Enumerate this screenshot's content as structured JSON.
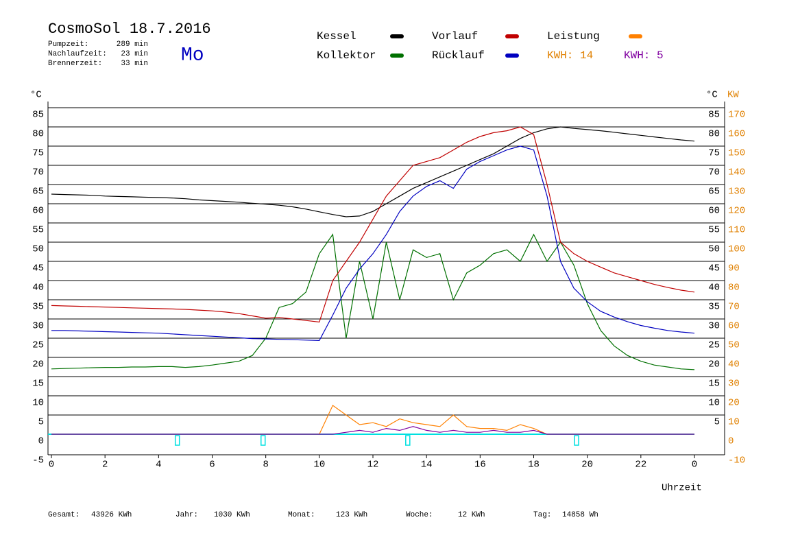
{
  "header": {
    "title": "CosmoSol 18.7.2016",
    "stats": [
      {
        "label": "Pumpzeit:",
        "value": "289 min"
      },
      {
        "label": "Nachlaufzeit:",
        "value": "23 min"
      },
      {
        "label": "Brennerzeit:",
        "value": "33 min"
      }
    ],
    "day": "Mo"
  },
  "footer": [
    {
      "label": "Gesamt:",
      "value": "43926 KWh"
    },
    {
      "label": "Jahr:",
      "value": "1030 KWh"
    },
    {
      "label": "Monat:",
      "value": "123 KWh"
    },
    {
      "label": "Woche:",
      "value": "12 KWh"
    },
    {
      "label": "Tag:",
      "value": "14858 Wh"
    }
  ],
  "chart_data": {
    "type": "line",
    "y_label": "°C",
    "y2_label": "°C",
    "y2_unit_label": "KW",
    "x_label": "Uhrzeit",
    "xlim": [
      0,
      24
    ],
    "xticks": [
      0,
      2,
      4,
      6,
      8,
      10,
      12,
      14,
      16,
      18,
      20,
      22,
      {
        "value": 24,
        "label": "0"
      }
    ],
    "ylim": [
      -5,
      85
    ],
    "yticks": [
      85,
      80,
      75,
      70,
      65,
      60,
      55,
      50,
      45,
      40,
      35,
      30,
      25,
      20,
      15,
      10,
      5,
      0,
      -5
    ],
    "y_right_ticks": [
      85,
      80,
      75,
      70,
      65,
      60,
      55,
      50,
      45,
      40,
      35,
      30,
      25,
      20,
      15,
      10,
      5
    ],
    "y2lim": [
      -10,
      170
    ],
    "y2ticks": [
      170,
      160,
      150,
      140,
      130,
      120,
      110,
      100,
      90,
      80,
      70,
      60,
      50,
      40,
      30,
      20,
      10,
      0,
      -10
    ],
    "y2_color": "#e08000",
    "grid": true,
    "kwh_labels": [
      {
        "text": "KWH: 14",
        "color": "#e08000"
      },
      {
        "text": "KWH: 5",
        "color": "#8000a0"
      }
    ],
    "pump_line_color": "#00e0e0",
    "pump_markers": [
      4.7,
      7.9,
      13.3,
      19.6
    ],
    "x": [
      0,
      0.5,
      1,
      1.5,
      2,
      2.5,
      3,
      3.5,
      4,
      4.5,
      5,
      5.5,
      6,
      6.5,
      7,
      7.5,
      8,
      8.5,
      9,
      9.5,
      10,
      10.5,
      11,
      11.5,
      12,
      12.5,
      13,
      13.5,
      14,
      14.5,
      15,
      15.5,
      16,
      16.5,
      17,
      17.5,
      18,
      18.5,
      19,
      19.5,
      20,
      20.5,
      21,
      21.5,
      22,
      22.5,
      23,
      23.5,
      24
    ],
    "series": [
      {
        "name": "Kessel",
        "color": "#000000",
        "values": [
          62.5,
          62.4,
          62.3,
          62.2,
          62.0,
          61.9,
          61.8,
          61.7,
          61.6,
          61.5,
          61.3,
          61.0,
          60.8,
          60.6,
          60.4,
          60.1,
          59.9,
          59.6,
          59.2,
          58.6,
          57.9,
          57.2,
          56.6,
          56.8,
          58,
          60,
          62,
          64,
          65.5,
          67,
          68.5,
          70,
          71.5,
          73,
          75,
          77,
          78.5,
          79.5,
          80,
          79.6,
          79.3,
          79,
          78.6,
          78.2,
          77.8,
          77.4,
          77,
          76.6,
          76.3
        ]
      },
      {
        "name": "Kollektor",
        "color": "#007000",
        "values": [
          17,
          17.1,
          17.2,
          17.3,
          17.4,
          17.4,
          17.5,
          17.5,
          17.6,
          17.6,
          17.4,
          17.6,
          18,
          18.5,
          19,
          20.5,
          25,
          33,
          34,
          37,
          47,
          52,
          25,
          45,
          30,
          50,
          35,
          48,
          46,
          47,
          35,
          42,
          44,
          47,
          48,
          45,
          52,
          45,
          50,
          44,
          34,
          27,
          23,
          20.5,
          19,
          18,
          17.5,
          17,
          16.8
        ]
      },
      {
        "name": "Vorlauf",
        "color": "#c00000",
        "values": [
          33.5,
          33.4,
          33.3,
          33.2,
          33.1,
          33,
          32.9,
          32.8,
          32.7,
          32.6,
          32.5,
          32.3,
          32.1,
          31.8,
          31.4,
          30.8,
          30.2,
          30.4,
          30,
          29.6,
          29.2,
          40,
          45,
          50,
          56,
          62,
          66,
          70,
          71,
          72,
          74,
          76,
          77.5,
          78.5,
          79,
          80,
          78,
          65,
          50,
          47,
          45,
          43.5,
          42,
          41,
          40,
          39,
          38.2,
          37.5,
          37
        ]
      },
      {
        "name": "Rücklauf",
        "color": "#0000c0",
        "values": [
          27,
          27,
          26.9,
          26.8,
          26.7,
          26.6,
          26.5,
          26.4,
          26.3,
          26.1,
          25.9,
          25.7,
          25.5,
          25.3,
          25.1,
          24.9,
          24.8,
          24.7,
          24.6,
          24.5,
          24.4,
          31,
          38,
          43,
          47,
          52,
          58,
          62,
          64.5,
          66,
          64,
          69,
          71,
          72.5,
          74,
          75,
          74,
          62,
          45,
          38,
          34.5,
          32,
          30.5,
          29.3,
          28.3,
          27.6,
          27,
          26.6,
          26.3
        ]
      },
      {
        "name": "Leistung",
        "color": "#ff8000",
        "axis": "y2",
        "values": [
          0,
          0,
          0,
          0,
          0,
          0,
          0,
          0,
          0,
          0,
          0,
          0,
          0,
          0,
          0,
          0,
          0,
          0,
          0,
          0,
          0,
          15,
          10,
          5,
          6,
          4,
          8,
          6,
          5,
          4,
          10,
          4,
          3,
          3,
          2,
          5,
          3,
          0,
          0,
          0,
          0,
          0,
          0,
          0,
          0,
          0,
          0,
          0,
          0
        ]
      },
      {
        "color": "#8000a0",
        "axis": "y2",
        "values": [
          0,
          0,
          0,
          0,
          0,
          0,
          0,
          0,
          0,
          0,
          0,
          0,
          0,
          0,
          0,
          0,
          0,
          0,
          0,
          0,
          0,
          0,
          1,
          2,
          1,
          3,
          2,
          4,
          2,
          1,
          2,
          1,
          1,
          2,
          1,
          1,
          2,
          0,
          0,
          0,
          0,
          0,
          0,
          0,
          0,
          0,
          0,
          0,
          0
        ]
      }
    ]
  }
}
